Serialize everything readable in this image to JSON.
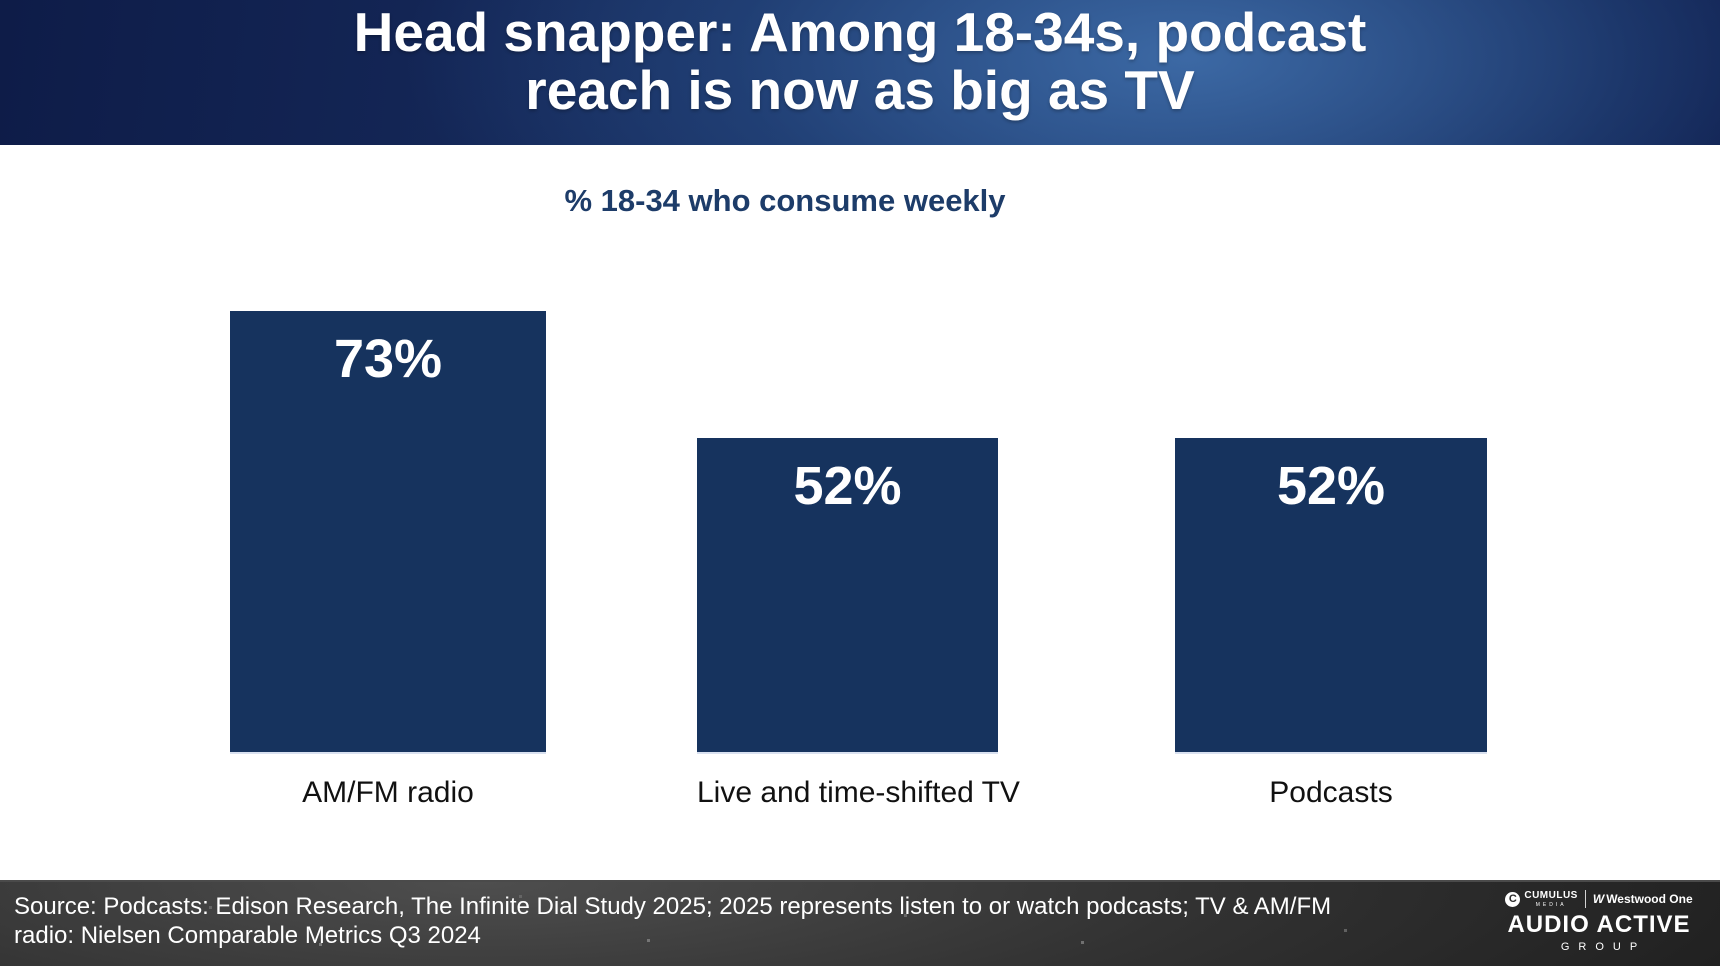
{
  "header": {
    "title": "Head snapper: Among 18-34s, podcast\nreach is now as big as TV"
  },
  "chart_data": {
    "type": "bar",
    "title": "% 18-34 who consume weekly",
    "categories": [
      "AM/FM radio",
      "Live and time-shifted TV",
      "Podcasts"
    ],
    "values": [
      73,
      52,
      52
    ],
    "value_labels": [
      "73%",
      "52%",
      "52%"
    ],
    "ylim": [
      0,
      100
    ],
    "grid": false,
    "legend": false,
    "bar_color": "#16335e",
    "value_label_color": "#ffffff",
    "category_label_color": "#111111"
  },
  "footer": {
    "source_line1": "Source: Podcasts: Edison Research, The Infinite Dial Study 2025; 2025 represents listen to or watch podcasts; TV & AM/FM",
    "source_line2": "radio: Nielsen Comparable Metrics Q3 2024",
    "logos": {
      "cumulus_initial": "C",
      "cumulus_name": "CUMULUS",
      "cumulus_media": "MEDIA",
      "westwood_icon": "W",
      "westwood_name": "Westwood One",
      "audio_active": "AUDIO ACTIVE",
      "group": "GROUP"
    }
  }
}
